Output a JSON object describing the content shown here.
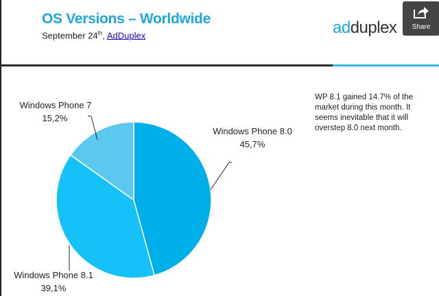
{
  "header": {
    "title": "OS Versions – Worldwide",
    "subtitle_date": "September 24",
    "subtitle_sup": "th",
    "subtitle_sep": ", ",
    "subtitle_link": "AdDuplex",
    "logo_ad": "ad",
    "logo_rest": "duplex",
    "share_label": "Share",
    "share_icon": "share-arrow-icon"
  },
  "note": "WP 8.1 gained 14.7% of the market during this month. It seems inevitable that it will overstep 8.0 next month.",
  "colors": {
    "title": "#1fa6dc",
    "wp80": "#00aeea",
    "wp81": "#14c2f8",
    "wp7": "#5cc8f0"
  },
  "chart_data": {
    "type": "pie",
    "title": "OS Versions – Worldwide",
    "start": "top",
    "direction": "clockwise",
    "slices": [
      {
        "name": "Windows Phone 8.0",
        "label": "45,7%",
        "value": 45.7,
        "color": "#00aeea"
      },
      {
        "name": "Windows Phone 8.1",
        "label": "39,1%",
        "value": 39.1,
        "color": "#14c2f8"
      },
      {
        "name": "Windows Phone 7",
        "label": "15,2%",
        "value": 15.2,
        "color": "#5cc8f0"
      }
    ]
  }
}
